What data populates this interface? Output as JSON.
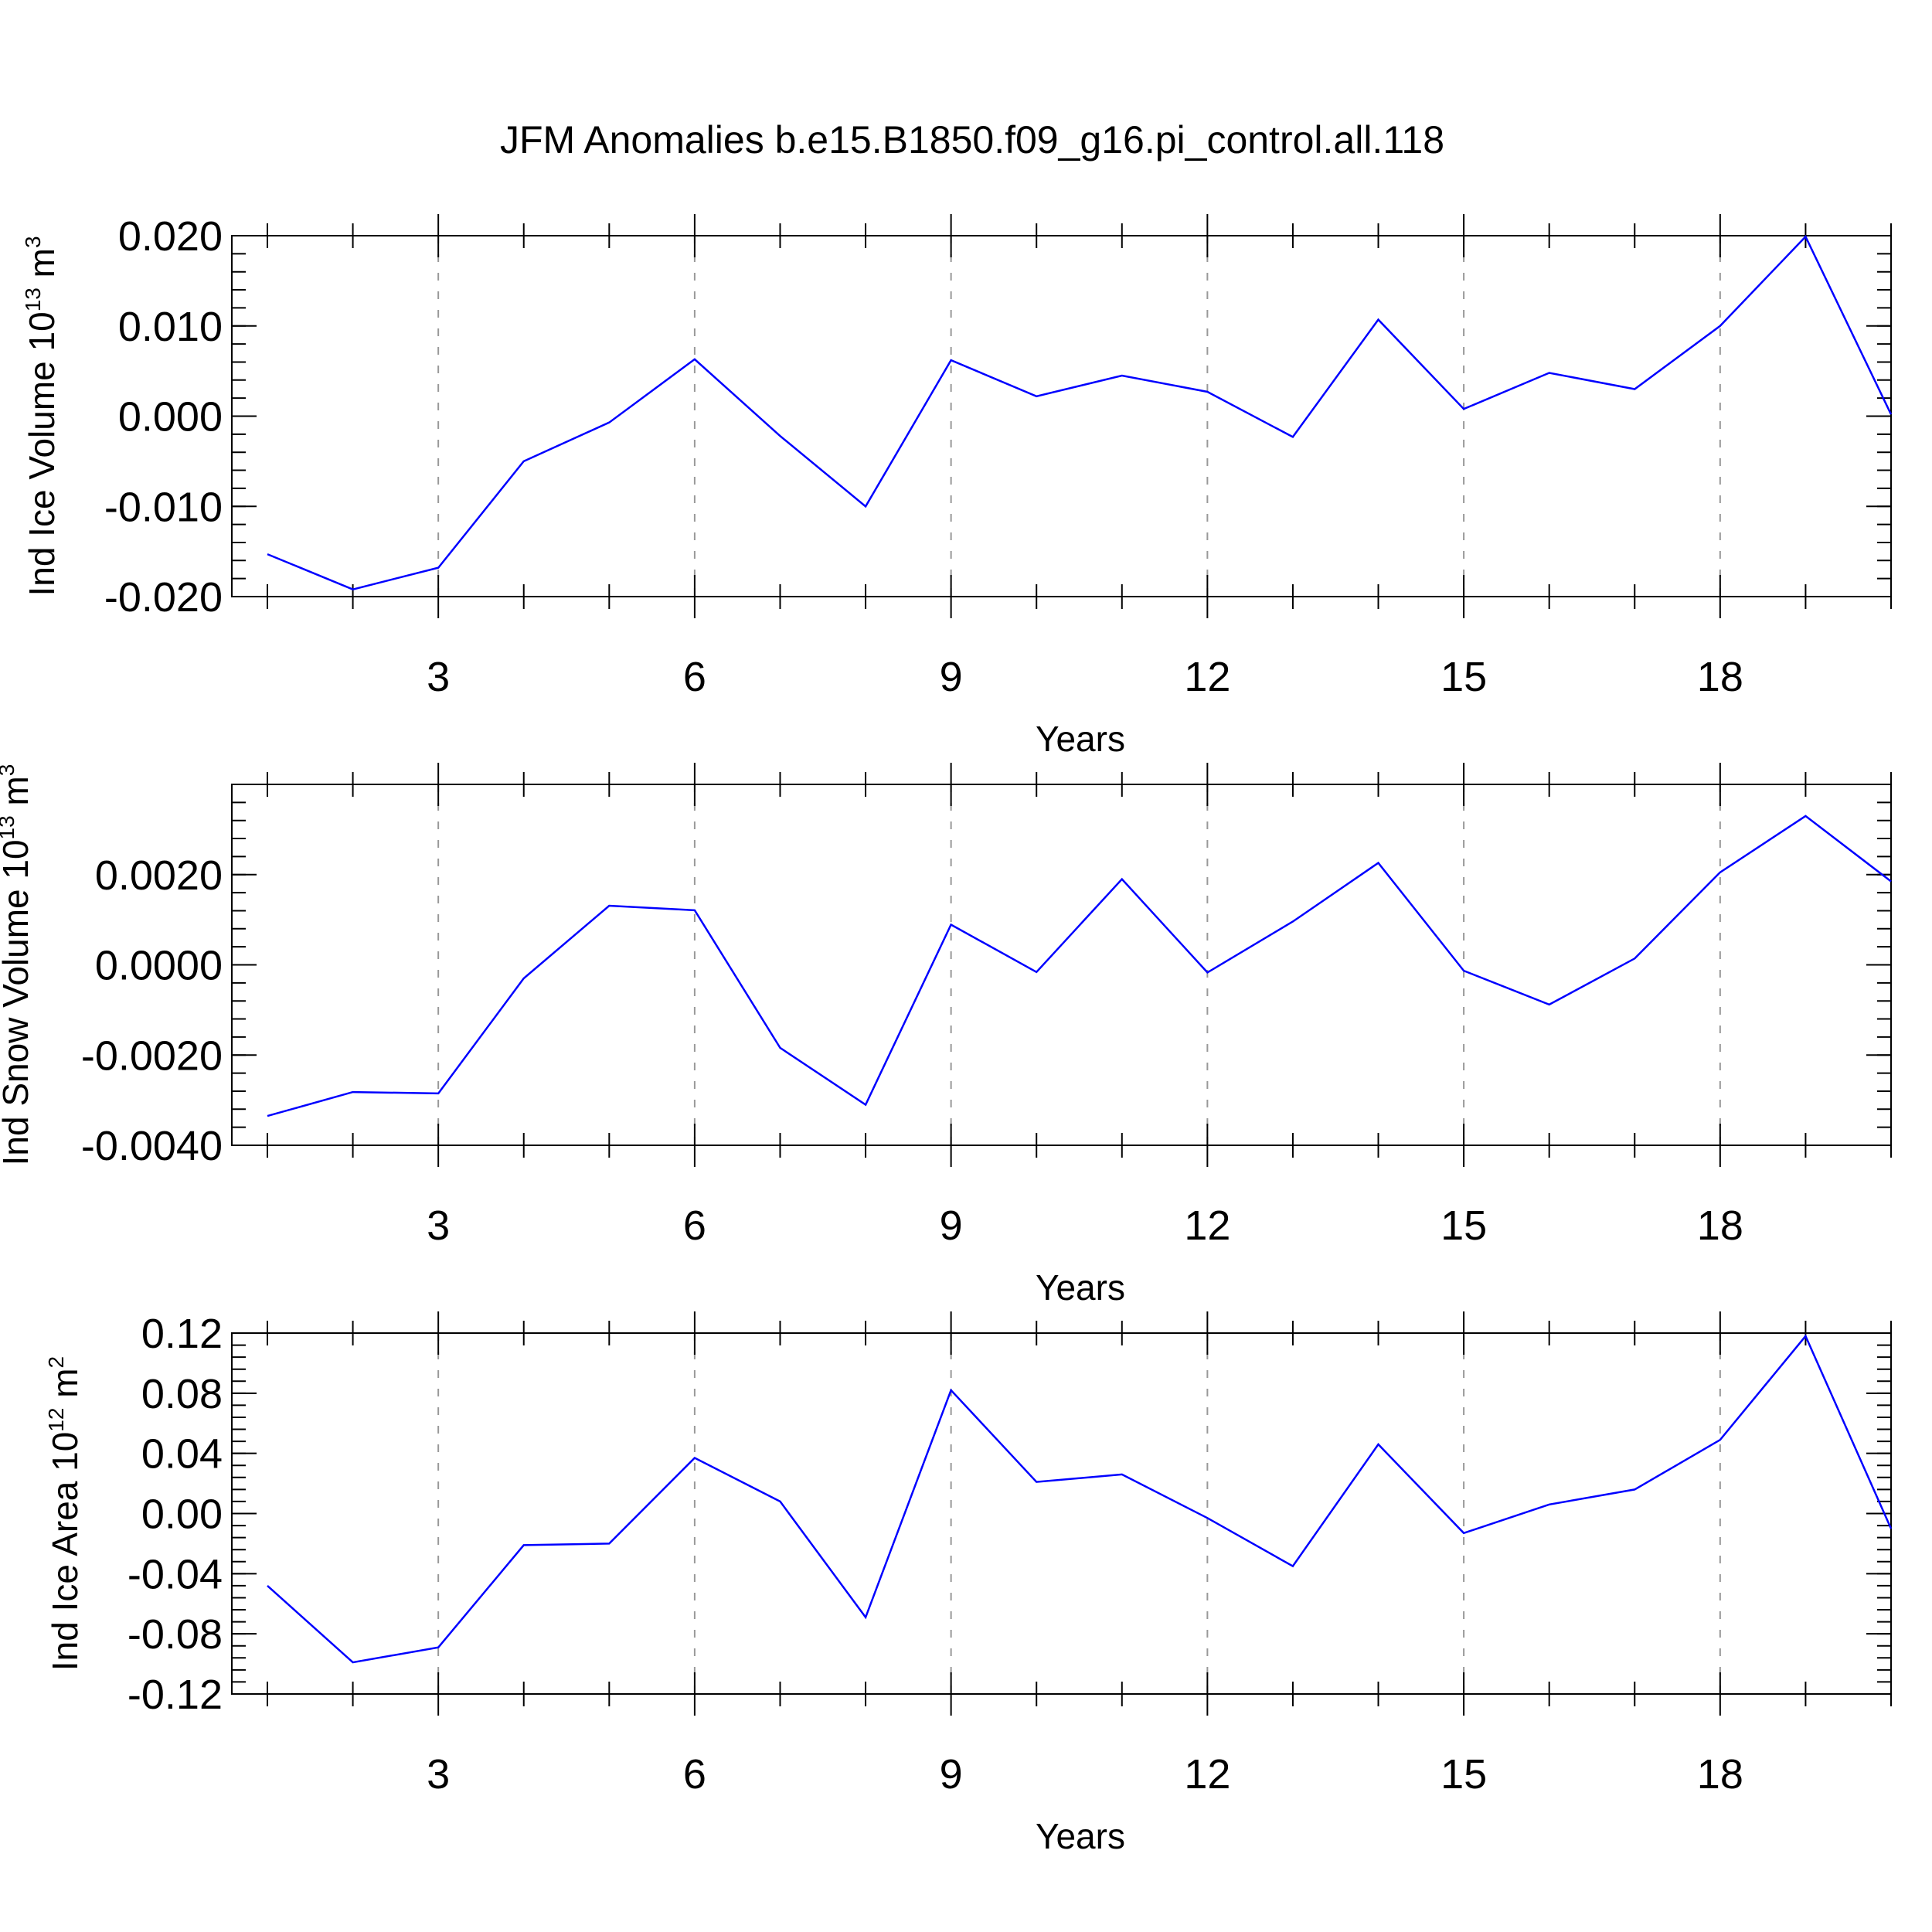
{
  "chart_data": {
    "title": "JFM Anomalies b.e15.B1850.f09_g16.pi_control.all.118",
    "line_color": "#0000ff",
    "panels": [
      {
        "type": "line",
        "ylabel": {
          "text": "Ind Ice Volume 10",
          "exp": "13",
          "unit": " m",
          "unit_exp": "3"
        },
        "xlabel": "Years",
        "xlim": [
          1,
          20
        ],
        "ylim": [
          -0.02,
          0.02
        ],
        "yticks": [
          -0.02,
          -0.01,
          0.0,
          0.01,
          0.02
        ],
        "ytick_labels": [
          "-0.020",
          "-0.010",
          "0.000",
          "0.010",
          "0.020"
        ],
        "y_minor_step": 0.002,
        "xticks": [
          3,
          6,
          9,
          12,
          15,
          18
        ],
        "x": [
          1,
          2,
          3,
          4,
          5,
          6,
          7,
          8,
          9,
          10,
          11,
          12,
          13,
          14,
          15,
          16,
          17,
          18,
          19,
          20
        ],
        "y": [
          -0.0153,
          -0.0192,
          -0.0168,
          -0.005,
          -0.0007,
          0.0063,
          -0.0022,
          -0.01,
          0.0062,
          0.0022,
          0.0045,
          0.0027,
          -0.0023,
          0.0107,
          0.0008,
          0.0048,
          0.003,
          0.01,
          0.0199,
          0.0002
        ]
      },
      {
        "type": "line",
        "ylabel": {
          "text": "Ind Snow Volume 10",
          "exp": "13",
          "unit": " m",
          "unit_exp": "3"
        },
        "xlabel": "Years",
        "xlim": [
          1,
          20
        ],
        "ylim": [
          -0.004,
          0.004
        ],
        "yticks": [
          -0.004,
          -0.002,
          0.0,
          0.002
        ],
        "ytick_labels": [
          "-0.0040",
          "-0.0020",
          "0.0000",
          "0.0020"
        ],
        "y_minor_step": 0.0004,
        "xticks": [
          3,
          6,
          9,
          12,
          15,
          18
        ],
        "x": [
          1,
          2,
          3,
          4,
          5,
          6,
          7,
          8,
          9,
          10,
          11,
          12,
          13,
          14,
          15,
          16,
          17,
          18,
          19,
          20
        ],
        "y": [
          -0.00335,
          -0.00282,
          -0.00285,
          -0.0003,
          0.00131,
          0.00121,
          -0.00184,
          -0.0031,
          0.00089,
          -0.00016,
          0.0019,
          -0.00017,
          0.00096,
          0.00226,
          -0.00013,
          -0.00088,
          0.00014,
          0.00205,
          0.0033,
          0.00185
        ]
      },
      {
        "type": "line",
        "ylabel": {
          "text": "Ind Ice Area 10",
          "exp": "12",
          "unit": " m",
          "unit_exp": "2"
        },
        "xlabel": "Years",
        "xlim": [
          1,
          20
        ],
        "ylim": [
          -0.12,
          0.12
        ],
        "yticks": [
          -0.12,
          -0.08,
          -0.04,
          0.0,
          0.04,
          0.08,
          0.12
        ],
        "ytick_labels": [
          "-0.12",
          "-0.08",
          "-0.04",
          "0.00",
          "0.04",
          "0.08",
          "0.12"
        ],
        "y_minor_step": 0.008,
        "xticks": [
          3,
          6,
          9,
          12,
          15,
          18
        ],
        "x": [
          1,
          2,
          3,
          4,
          5,
          6,
          7,
          8,
          9,
          10,
          11,
          12,
          13,
          14,
          15,
          16,
          17,
          18,
          19,
          20
        ],
        "y": [
          -0.048,
          -0.099,
          -0.089,
          -0.021,
          -0.02,
          0.037,
          0.008,
          -0.069,
          0.082,
          0.021,
          0.026,
          -0.003,
          -0.035,
          0.046,
          -0.013,
          0.006,
          0.016,
          0.049,
          0.118,
          -0.01
        ]
      }
    ]
  }
}
